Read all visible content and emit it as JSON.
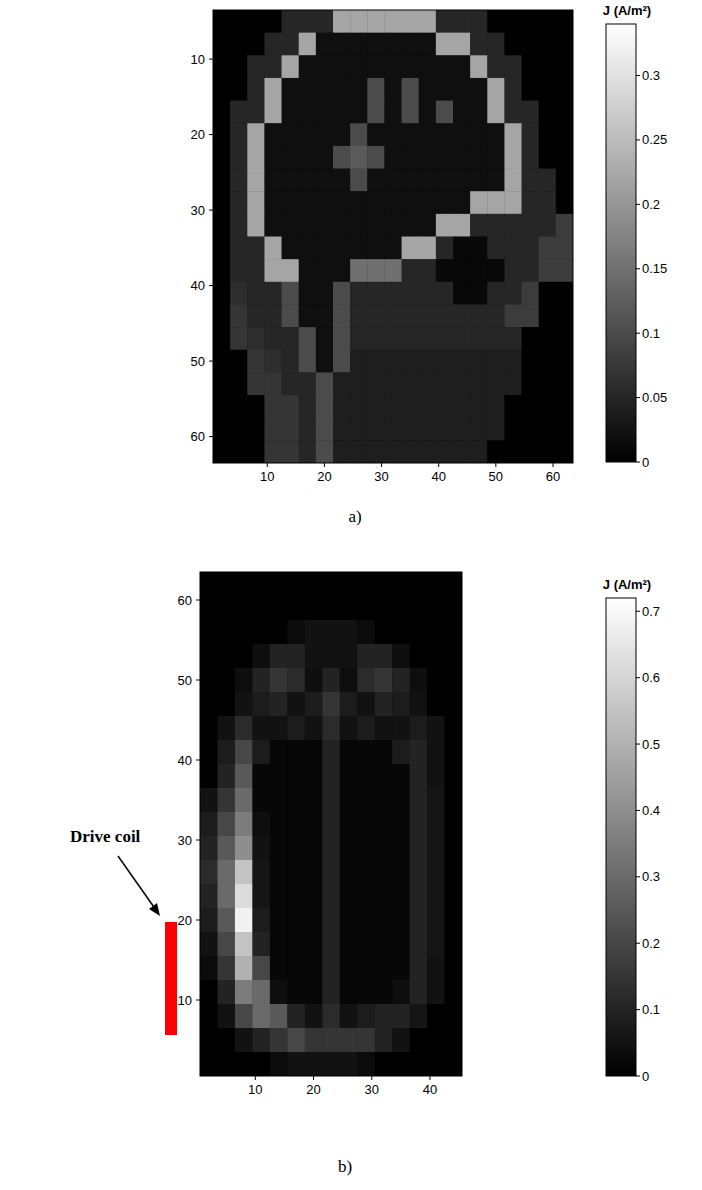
{
  "chart_data": [
    {
      "type": "heatmap",
      "panel_label": "a)",
      "x": [
        2,
        5,
        8,
        11,
        14,
        17,
        20,
        23,
        26,
        29,
        32,
        35,
        38,
        41,
        44,
        47,
        50,
        53,
        56,
        59,
        62
      ],
      "y": [
        5,
        8,
        11,
        14,
        17,
        20,
        23,
        26,
        29,
        32,
        35,
        38,
        41,
        44,
        47,
        50,
        53,
        56,
        59,
        62
      ],
      "xlim": [
        0.5,
        63.5
      ],
      "ylim": [
        63.5,
        3.5
      ],
      "xticks": [
        10,
        20,
        30,
        40,
        50,
        60
      ],
      "yticks": [
        10,
        20,
        30,
        40,
        50,
        60
      ],
      "colorbar_label": "J (A/m²)",
      "colorbar_range": [
        0,
        0.34
      ],
      "colorbar_ticks": [
        0,
        0.05,
        0.1,
        0.15,
        0.2,
        0.25,
        0.3
      ],
      "z": [
        [
          0,
          0,
          0,
          0,
          0.05,
          0.05,
          0.05,
          0.22,
          0.22,
          0.22,
          0.22,
          0.22,
          0.22,
          0.05,
          0.05,
          0.05,
          0,
          0,
          0,
          0,
          0
        ],
        [
          0,
          0,
          0,
          0.05,
          0.05,
          0.22,
          0.02,
          0.02,
          0.02,
          0.02,
          0.02,
          0.02,
          0.02,
          0.22,
          0.22,
          0.05,
          0.05,
          0,
          0,
          0,
          0
        ],
        [
          0,
          0,
          0.05,
          0.05,
          0.22,
          0.02,
          0.02,
          0.02,
          0.02,
          0.02,
          0.02,
          0.02,
          0.02,
          0.02,
          0.02,
          0.22,
          0.05,
          0.05,
          0,
          0,
          0
        ],
        [
          0,
          0,
          0.05,
          0.22,
          0.02,
          0.02,
          0.02,
          0.02,
          0.02,
          0.1,
          0.02,
          0.1,
          0.02,
          0.02,
          0.02,
          0.02,
          0.22,
          0.05,
          0,
          0,
          0
        ],
        [
          0,
          0.05,
          0.05,
          0.22,
          0.02,
          0.02,
          0.02,
          0.02,
          0.02,
          0.1,
          0.02,
          0.1,
          0.02,
          0.1,
          0.02,
          0.02,
          0.22,
          0.05,
          0.05,
          0,
          0
        ],
        [
          0,
          0.05,
          0.22,
          0.02,
          0.02,
          0.02,
          0.02,
          0.02,
          0.1,
          0.02,
          0.02,
          0.02,
          0.02,
          0.02,
          0.02,
          0.02,
          0.02,
          0.22,
          0.05,
          0,
          0
        ],
        [
          0,
          0.05,
          0.22,
          0.02,
          0.02,
          0.02,
          0.02,
          0.1,
          0.12,
          0.1,
          0.02,
          0.02,
          0.02,
          0.02,
          0.02,
          0.02,
          0.02,
          0.22,
          0.05,
          0,
          0
        ],
        [
          0,
          0.05,
          0.22,
          0.02,
          0.02,
          0.02,
          0.02,
          0.02,
          0.1,
          0.02,
          0.02,
          0.02,
          0.02,
          0.02,
          0.02,
          0.02,
          0.02,
          0.22,
          0.05,
          0.05,
          0
        ],
        [
          0,
          0.05,
          0.22,
          0.02,
          0.02,
          0.02,
          0.02,
          0.02,
          0.02,
          0.02,
          0.02,
          0.02,
          0.02,
          0.02,
          0.02,
          0.22,
          0.22,
          0.22,
          0.05,
          0.05,
          0
        ],
        [
          0,
          0.05,
          0.22,
          0.02,
          0.02,
          0.02,
          0.02,
          0.02,
          0.02,
          0.02,
          0.02,
          0.02,
          0.02,
          0.22,
          0.22,
          0.05,
          0.05,
          0.05,
          0.05,
          0.05,
          0.08
        ],
        [
          0,
          0.05,
          0.05,
          0.22,
          0.02,
          0.02,
          0.02,
          0.02,
          0.02,
          0.02,
          0.02,
          0.22,
          0.22,
          0.05,
          0.01,
          0.01,
          0.05,
          0.05,
          0.05,
          0.08,
          0.08
        ],
        [
          0,
          0.05,
          0.05,
          0.22,
          0.22,
          0.02,
          0.02,
          0.02,
          0.15,
          0.15,
          0.15,
          0.05,
          0.05,
          0.01,
          0.01,
          0.01,
          0.01,
          0.05,
          0.05,
          0.08,
          0.08
        ],
        [
          0,
          0.06,
          0.05,
          0.05,
          0.1,
          0.02,
          0.02,
          0.1,
          0.05,
          0.05,
          0.05,
          0.05,
          0.05,
          0.05,
          0.01,
          0.01,
          0.05,
          0.05,
          0.08,
          0,
          0
        ],
        [
          0,
          0.07,
          0.05,
          0.05,
          0.1,
          0.02,
          0.02,
          0.1,
          0.05,
          0.05,
          0.05,
          0.05,
          0.05,
          0.05,
          0.05,
          0.05,
          0.05,
          0.08,
          0.08,
          0,
          0
        ],
        [
          0,
          0.07,
          0.06,
          0.05,
          0.05,
          0.1,
          0.02,
          0.1,
          0.05,
          0.05,
          0.05,
          0.05,
          0.05,
          0.05,
          0.05,
          0.05,
          0.05,
          0.05,
          0,
          0,
          0
        ],
        [
          0,
          0,
          0.07,
          0.06,
          0.05,
          0.1,
          0.02,
          0.1,
          0.04,
          0.04,
          0.04,
          0.04,
          0.04,
          0.04,
          0.04,
          0.04,
          0.04,
          0.04,
          0,
          0,
          0
        ],
        [
          0,
          0,
          0.07,
          0.07,
          0.05,
          0.05,
          0.1,
          0.04,
          0.04,
          0.04,
          0.04,
          0.04,
          0.04,
          0.04,
          0.04,
          0.04,
          0.04,
          0.04,
          0,
          0,
          0
        ],
        [
          0,
          0,
          0,
          0.07,
          0.07,
          0.05,
          0.1,
          0.04,
          0.04,
          0.04,
          0.04,
          0.04,
          0.04,
          0.04,
          0.04,
          0.04,
          0.04,
          0,
          0,
          0,
          0
        ],
        [
          0,
          0,
          0,
          0.07,
          0.07,
          0.05,
          0.1,
          0.04,
          0.04,
          0.04,
          0.04,
          0.04,
          0.04,
          0.04,
          0.04,
          0.04,
          0.04,
          0,
          0,
          0,
          0
        ],
        [
          0,
          0,
          0,
          0.07,
          0.07,
          0.05,
          0.1,
          0.04,
          0.04,
          0.04,
          0.04,
          0.04,
          0.04,
          0.04,
          0.04,
          0.04,
          0,
          0,
          0,
          0,
          0
        ]
      ]
    },
    {
      "type": "heatmap",
      "panel_label": "b)",
      "annotation": "Drive coil",
      "x": [
        2,
        5,
        8,
        11,
        14,
        17,
        20,
        23,
        26,
        29,
        32,
        35,
        38,
        41,
        44
      ],
      "y": [
        62,
        59,
        56,
        53,
        50,
        47,
        44,
        41,
        38,
        35,
        32,
        29,
        26,
        23,
        20,
        17,
        14,
        11,
        8,
        5,
        2
      ],
      "xlim": [
        0.5,
        45.5
      ],
      "ylim": [
        0.5,
        63.5
      ],
      "xticks": [
        10,
        20,
        30,
        40
      ],
      "yticks": [
        10,
        20,
        30,
        40,
        50,
        60
      ],
      "colorbar_label": "J (A/m²)",
      "colorbar_range": [
        0,
        0.72
      ],
      "colorbar_ticks": [
        0,
        0.1,
        0.2,
        0.3,
        0.4,
        0.5,
        0.6,
        0.7
      ],
      "z": [
        [
          0,
          0,
          0,
          0,
          0,
          0,
          0,
          0,
          0,
          0,
          0,
          0,
          0,
          0,
          0
        ],
        [
          0,
          0,
          0,
          0,
          0,
          0,
          0,
          0,
          0,
          0,
          0,
          0,
          0,
          0,
          0
        ],
        [
          0,
          0,
          0,
          0,
          0,
          0.03,
          0.05,
          0.05,
          0.05,
          0.03,
          0,
          0,
          0,
          0,
          0
        ],
        [
          0,
          0,
          0,
          0.04,
          0.1,
          0.1,
          0.05,
          0.05,
          0.05,
          0.1,
          0.1,
          0.04,
          0,
          0,
          0
        ],
        [
          0,
          0,
          0.04,
          0.1,
          0.15,
          0.12,
          0.04,
          0.1,
          0.04,
          0.12,
          0.15,
          0.1,
          0.04,
          0,
          0
        ],
        [
          0,
          0,
          0.05,
          0.08,
          0.1,
          0.05,
          0.08,
          0.15,
          0.08,
          0.05,
          0.1,
          0.08,
          0.05,
          0,
          0
        ],
        [
          0,
          0.05,
          0.12,
          0.05,
          0.05,
          0.08,
          0.05,
          0.12,
          0.05,
          0.08,
          0.05,
          0.05,
          0.08,
          0.05,
          0
        ],
        [
          0,
          0.08,
          0.2,
          0.08,
          0.02,
          0.02,
          0.02,
          0.1,
          0.02,
          0.02,
          0.02,
          0.08,
          0.1,
          0.05,
          0
        ],
        [
          0,
          0.1,
          0.25,
          0.02,
          0.02,
          0.02,
          0.02,
          0.1,
          0.02,
          0.02,
          0.02,
          0.02,
          0.1,
          0.05,
          0
        ],
        [
          0.05,
          0.15,
          0.3,
          0.02,
          0.02,
          0.02,
          0.02,
          0.1,
          0.02,
          0.02,
          0.02,
          0.02,
          0.1,
          0.06,
          0
        ],
        [
          0.08,
          0.2,
          0.35,
          0.04,
          0.02,
          0.02,
          0.02,
          0.1,
          0.02,
          0.02,
          0.02,
          0.02,
          0.1,
          0.06,
          0
        ],
        [
          0.1,
          0.25,
          0.4,
          0.05,
          0.02,
          0.02,
          0.02,
          0.1,
          0.02,
          0.02,
          0.02,
          0.02,
          0.1,
          0.06,
          0
        ],
        [
          0.12,
          0.3,
          0.55,
          0.06,
          0.02,
          0.02,
          0.02,
          0.1,
          0.02,
          0.02,
          0.02,
          0.02,
          0.1,
          0.06,
          0
        ],
        [
          0.1,
          0.3,
          0.62,
          0.06,
          0.02,
          0.02,
          0.02,
          0.1,
          0.02,
          0.02,
          0.02,
          0.02,
          0.1,
          0.06,
          0
        ],
        [
          0.08,
          0.25,
          0.68,
          0.08,
          0.02,
          0.02,
          0.02,
          0.1,
          0.02,
          0.02,
          0.02,
          0.02,
          0.1,
          0.06,
          0
        ],
        [
          0.05,
          0.2,
          0.55,
          0.1,
          0.02,
          0.02,
          0.02,
          0.1,
          0.02,
          0.02,
          0.02,
          0.02,
          0.1,
          0.06,
          0
        ],
        [
          0.03,
          0.15,
          0.5,
          0.2,
          0.02,
          0.02,
          0.02,
          0.1,
          0.02,
          0.02,
          0.02,
          0.02,
          0.1,
          0.05,
          0
        ],
        [
          0,
          0.1,
          0.35,
          0.3,
          0.04,
          0.02,
          0.02,
          0.1,
          0.02,
          0.02,
          0.02,
          0.04,
          0.1,
          0.05,
          0
        ],
        [
          0,
          0.05,
          0.2,
          0.3,
          0.25,
          0.1,
          0.05,
          0.12,
          0.05,
          0.08,
          0.1,
          0.1,
          0.06,
          0,
          0
        ],
        [
          0,
          0,
          0.05,
          0.1,
          0.15,
          0.2,
          0.15,
          0.15,
          0.15,
          0.15,
          0.1,
          0.05,
          0,
          0,
          0
        ],
        [
          0,
          0,
          0,
          0,
          0.03,
          0.05,
          0.05,
          0.05,
          0.05,
          0.03,
          0,
          0,
          0,
          0,
          0
        ]
      ]
    }
  ]
}
